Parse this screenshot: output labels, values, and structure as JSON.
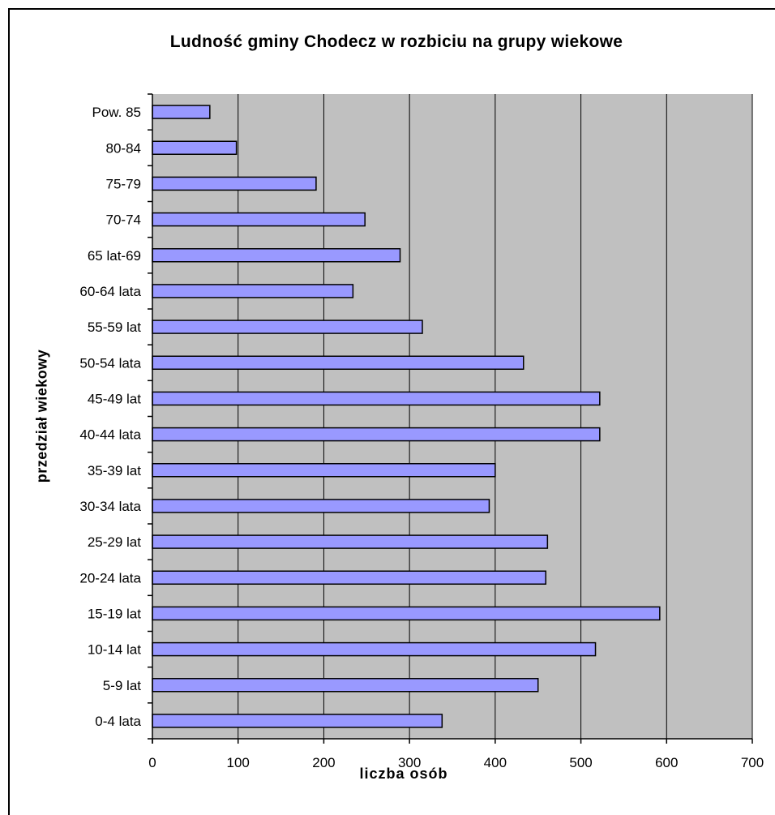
{
  "chart_data": {
    "type": "bar",
    "orientation": "horizontal",
    "title": "Ludność gminy Chodecz w rozbiciu na grupy wiekowe",
    "xlabel": "liczba osób",
    "ylabel": "przedział wiekowy",
    "categories": [
      "0-4 lata",
      "5-9 lat",
      "10-14 lat",
      "15-19 lat",
      "20-24 lata",
      "25-29 lat",
      "30-34 lata",
      "35-39 lat",
      "40-44 lata",
      "45-49 lat",
      "50-54 lata",
      "55-59 lat",
      "60-64 lata",
      "65 lat-69",
      "70-74",
      "75-79",
      "80-84",
      "Pow. 85"
    ],
    "values": [
      338,
      450,
      517,
      592,
      459,
      461,
      393,
      400,
      522,
      522,
      433,
      315,
      234,
      289,
      248,
      191,
      98,
      67
    ],
    "xlim": [
      0,
      700
    ],
    "xticks": [
      0,
      100,
      200,
      300,
      400,
      500,
      600,
      700
    ],
    "grid": true,
    "colors": {
      "plot_background": "#c0c0c0",
      "bar_fill": "#9999ff",
      "bar_stroke": "#000000",
      "gridline": "#000000"
    }
  }
}
